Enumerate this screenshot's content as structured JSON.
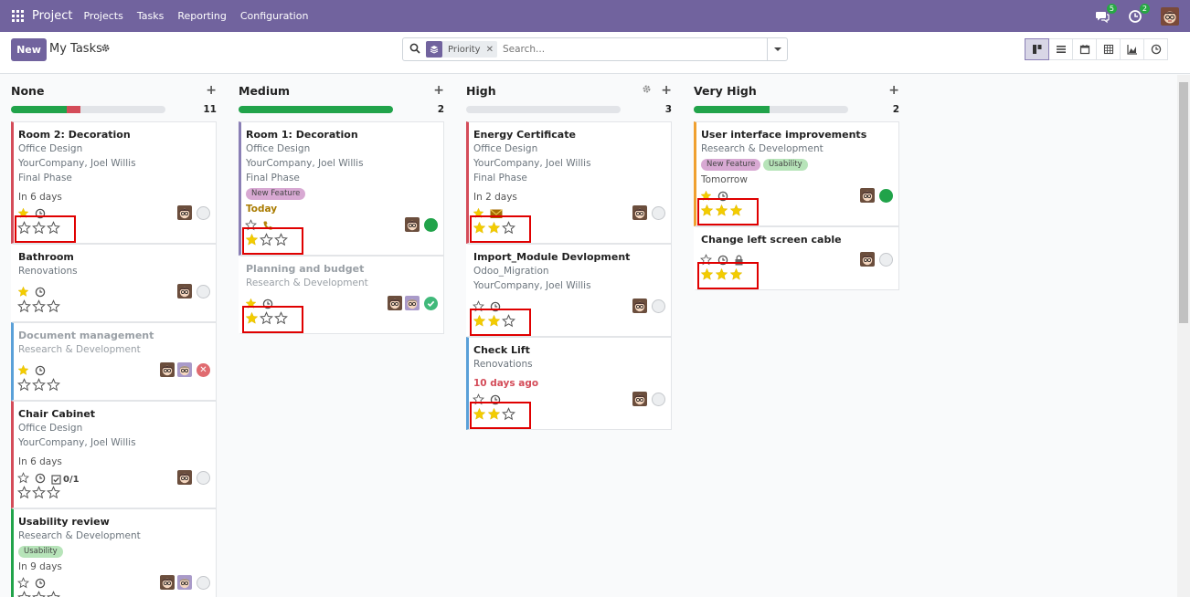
{
  "navbar": {
    "app_name": "Project",
    "menus": [
      "Projects",
      "Tasks",
      "Reporting",
      "Configuration"
    ],
    "messages_badge": "5",
    "activities_badge": "2",
    "icons": [
      "apps-grid-icon",
      "chat-icon",
      "clock-activity-icon",
      "user-avatar"
    ]
  },
  "control": {
    "new_label": "New",
    "title": "My Tasks",
    "facet_label": "Priority",
    "search_placeholder": "Search...",
    "views": [
      "kanban",
      "list",
      "calendar",
      "pivot",
      "graph",
      "activity"
    ],
    "active_view": "kanban"
  },
  "colors": {
    "brand": "#71639e",
    "green": "#21a34a",
    "red": "#d44c59",
    "star_filled": "#f3cc00",
    "highlight": "#e00000"
  },
  "columns": [
    {
      "title": "None",
      "count": "11",
      "gear": false,
      "progress": [
        {
          "color": "#21a34a",
          "pct": 36
        },
        {
          "color": "#d44c59",
          "pct": 9
        }
      ],
      "cards": [
        {
          "title": "Room 2: Decoration",
          "project": "Office Design",
          "customer": "YourCompany, Joel Willis",
          "milestone": "Final Phase",
          "date": "In 6 days",
          "date_style": "normal",
          "tags": [],
          "priority_star": "filled",
          "extra_icons": [
            "clock-icon"
          ],
          "subtasks": "",
          "avatars": 1,
          "state": "normal",
          "stars_filled": 0,
          "border": "#d44c59",
          "faded": false,
          "highlighted": true
        },
        {
          "title": "Bathroom",
          "project": "Renovations",
          "customer": "",
          "milestone": "",
          "date": "",
          "date_style": "normal",
          "tags": [],
          "priority_star": "filled",
          "extra_icons": [
            "clock-icon"
          ],
          "subtasks": "",
          "avatars": 1,
          "state": "normal",
          "stars_filled": 0,
          "border": "#ffffff",
          "faded": false,
          "highlighted": false
        },
        {
          "title": "Document management",
          "project": "Research & Development",
          "customer": "",
          "milestone": "",
          "date": "",
          "date_style": "normal",
          "tags": [],
          "priority_star": "filled",
          "extra_icons": [
            "clock-icon"
          ],
          "subtasks": "",
          "avatars": 2,
          "state": "cancel",
          "stars_filled": 0,
          "border": "#5aa0d8",
          "faded": true,
          "highlighted": false
        },
        {
          "title": "Chair Cabinet",
          "project": "Office Design",
          "customer": "YourCompany, Joel Willis",
          "milestone": "",
          "date": "In 6 days",
          "date_style": "normal",
          "tags": [],
          "priority_star": "empty",
          "extra_icons": [
            "clock-icon",
            "checklist-icon"
          ],
          "subtasks": "0/1",
          "avatars": 1,
          "state": "normal",
          "stars_filled": 0,
          "border": "#d44c59",
          "faded": false,
          "highlighted": false
        },
        {
          "title": "Usability review",
          "project": "Research & Development",
          "customer": "",
          "milestone": "",
          "date": "In 9 days",
          "date_style": "normal",
          "tags": [
            "Usability"
          ],
          "priority_star": "empty",
          "extra_icons": [
            "clock-icon"
          ],
          "subtasks": "",
          "avatars": 2,
          "state": "normal",
          "stars_filled": 0,
          "border": "#21a34a",
          "faded": false,
          "highlighted": false
        }
      ]
    },
    {
      "title": "Medium",
      "count": "2",
      "gear": false,
      "progress": [
        {
          "color": "#21a34a",
          "pct": 100
        }
      ],
      "cards": [
        {
          "title": "Room 1: Decoration",
          "project": "Office Design",
          "customer": "YourCompany, Joel Willis",
          "milestone": "Final Phase",
          "date": "Today",
          "date_style": "today",
          "tags": [
            "New Feature"
          ],
          "priority_star": "empty",
          "extra_icons": [
            "phone-icon"
          ],
          "subtasks": "",
          "avatars": 1,
          "state": "done",
          "stars_filled": 1,
          "border": "#8a7fb5",
          "faded": false,
          "highlighted": true
        },
        {
          "title": "Planning and budget",
          "project": "Research & Development",
          "customer": "",
          "milestone": "",
          "date": "",
          "date_style": "normal",
          "tags": [],
          "priority_star": "filled",
          "extra_icons": [
            "clock-icon"
          ],
          "subtasks": "",
          "avatars": 2,
          "state": "ok",
          "stars_filled": 1,
          "border": "#ffffff",
          "faded": true,
          "highlighted": true
        }
      ]
    },
    {
      "title": "High",
      "count": "3",
      "gear": true,
      "progress": [],
      "cards": [
        {
          "title": "Energy Certificate",
          "project": "Office Design",
          "customer": "YourCompany, Joel Willis",
          "milestone": "Final Phase",
          "date": "In 2 days",
          "date_style": "normal",
          "tags": [],
          "priority_star": "filled",
          "extra_icons": [
            "envelope-icon"
          ],
          "subtasks": "",
          "avatars": 1,
          "state": "normal",
          "stars_filled": 2,
          "border": "#d44c59",
          "faded": false,
          "highlighted": true
        },
        {
          "title": "Import_Module Devlopment",
          "project": "Odoo_Migration",
          "customer": "YourCompany, Joel Willis",
          "milestone": "",
          "date": "",
          "date_style": "normal",
          "tags": [],
          "priority_star": "empty",
          "extra_icons": [
            "clock-icon"
          ],
          "subtasks": "",
          "avatars": 1,
          "state": "normal",
          "stars_filled": 2,
          "border": "#ffffff",
          "faded": false,
          "highlighted": true
        },
        {
          "title": "Check Lift",
          "project": "Renovations",
          "customer": "",
          "milestone": "",
          "date": "10 days ago",
          "date_style": "overdue",
          "tags": [],
          "priority_star": "empty",
          "extra_icons": [
            "clock-icon"
          ],
          "subtasks": "",
          "avatars": 1,
          "state": "normal",
          "stars_filled": 2,
          "border": "#5aa0d8",
          "faded": false,
          "highlighted": true
        }
      ]
    },
    {
      "title": "Very High",
      "count": "2",
      "gear": false,
      "progress": [
        {
          "color": "#21a34a",
          "pct": 49
        }
      ],
      "cards": [
        {
          "title": "User interface improvements",
          "project": "Research & Development",
          "customer": "",
          "milestone": "",
          "date": "Tomorrow",
          "date_style": "normal",
          "tags": [
            "New Feature",
            "Usability"
          ],
          "priority_star": "filled",
          "extra_icons": [
            "clock-icon"
          ],
          "subtasks": "",
          "avatars": 1,
          "state": "done",
          "stars_filled": 3,
          "border": "#f0a030",
          "faded": false,
          "highlighted": true
        },
        {
          "title": "Change left screen cable",
          "project": "",
          "customer": "",
          "milestone": "",
          "date": "",
          "date_style": "normal",
          "tags": [],
          "priority_star": "empty",
          "extra_icons": [
            "clock-icon",
            "lock-icon"
          ],
          "subtasks": "",
          "avatars": 1,
          "state": "normal",
          "stars_filled": 3,
          "border": "#ffffff",
          "faded": false,
          "highlighted": true
        }
      ]
    }
  ]
}
